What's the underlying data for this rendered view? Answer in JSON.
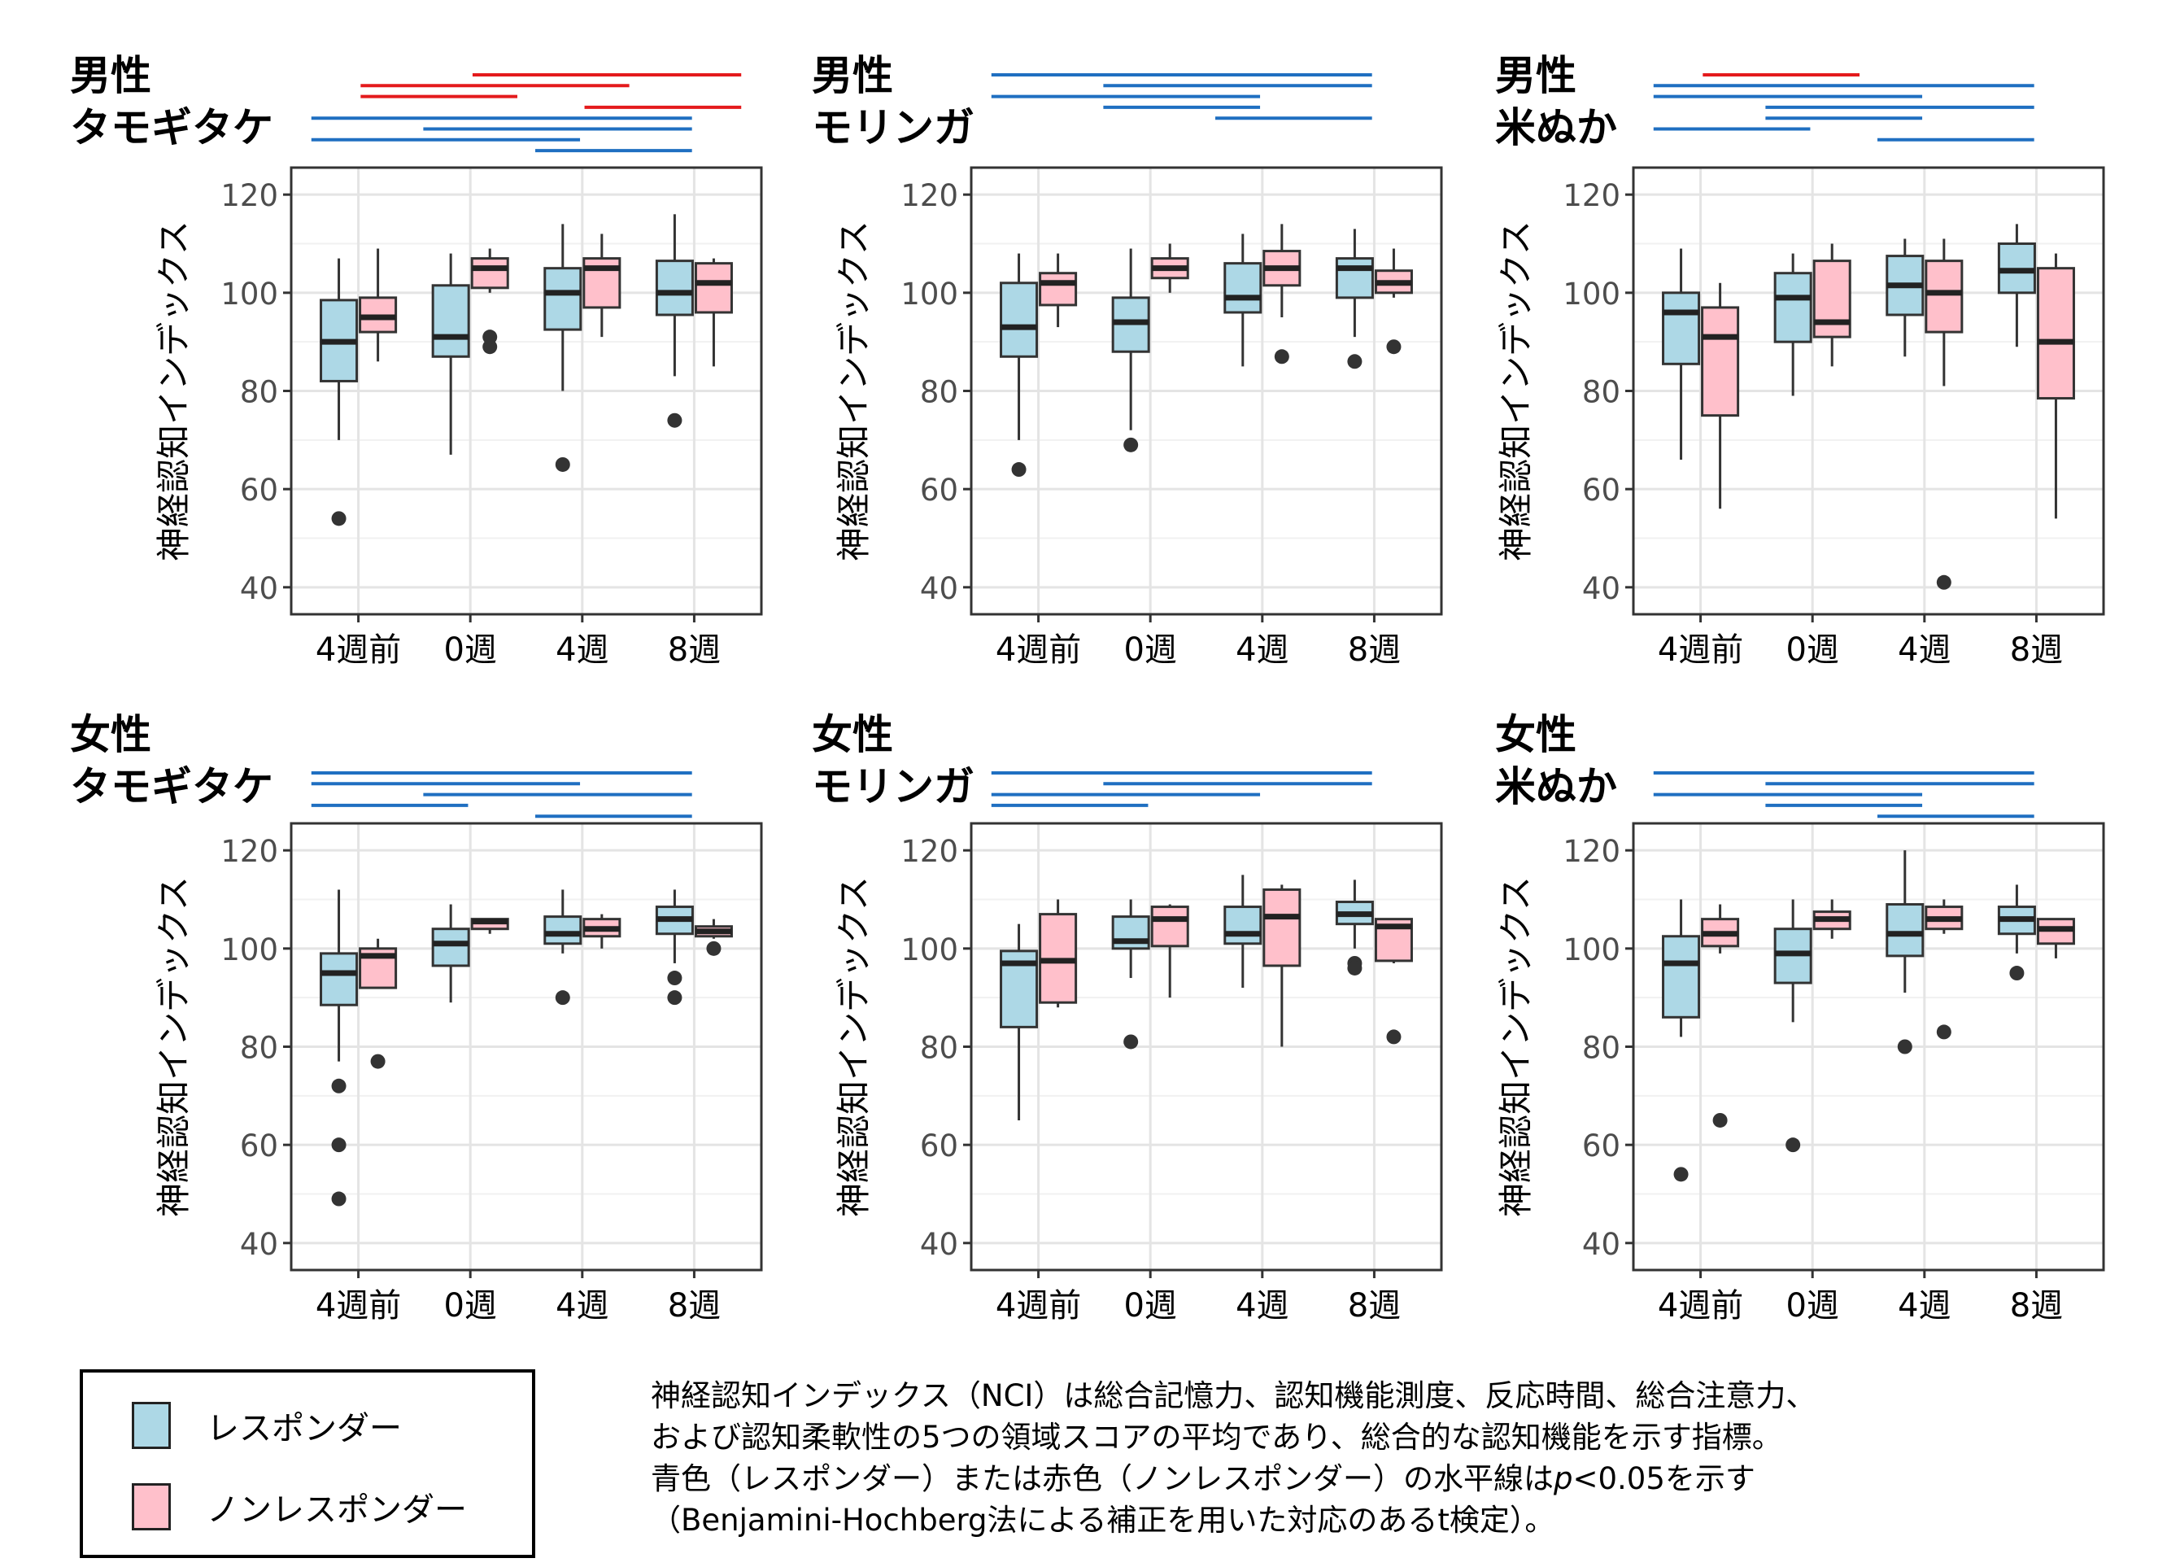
{
  "chart_data": [
    {
      "type": "box",
      "title": "男性\nタモギタケ",
      "ylabel": "神経認知インデックス",
      "categories": [
        "4週前",
        "0週",
        "4週",
        "8週"
      ],
      "ylim": [
        40,
        120
      ],
      "yticks": [
        40,
        60,
        80,
        100,
        120
      ],
      "series": [
        {
          "name": "レスポンダー",
          "color": "#add8e6",
          "boxes": [
            {
              "q1": 82,
              "median": 90,
              "q3": 98.5,
              "whisker_low": 70,
              "whisker_high": 107,
              "outliers": [
                54
              ]
            },
            {
              "q1": 87,
              "median": 91,
              "q3": 101.5,
              "whisker_low": 67,
              "whisker_high": 108,
              "outliers": []
            },
            {
              "q1": 92.5,
              "median": 100,
              "q3": 105,
              "whisker_low": 80,
              "whisker_high": 114,
              "outliers": [
                65
              ]
            },
            {
              "q1": 95.5,
              "median": 100,
              "q3": 106.5,
              "whisker_low": 83,
              "whisker_high": 116,
              "outliers": [
                74
              ]
            }
          ]
        },
        {
          "name": "ノンレスポンダー",
          "color": "#ffc0cb",
          "boxes": [
            {
              "q1": 92,
              "median": 95,
              "q3": 99,
              "whisker_low": 86,
              "whisker_high": 109,
              "outliers": []
            },
            {
              "q1": 101,
              "median": 105,
              "q3": 107,
              "whisker_low": 100,
              "whisker_high": 109,
              "outliers": [
                89,
                91
              ]
            },
            {
              "q1": 97,
              "median": 105,
              "q3": 107,
              "whisker_low": 91,
              "whisker_high": 112,
              "outliers": []
            },
            {
              "q1": 96,
              "median": 102,
              "q3": 106,
              "whisker_low": 85,
              "whisker_high": 107,
              "outliers": []
            }
          ]
        }
      ],
      "significance": [
        {
          "series": "ノンレスポンダー",
          "color": "red",
          "from": "0週",
          "to": "8週"
        },
        {
          "series": "ノンレスポンダー",
          "color": "red",
          "from": "4週前",
          "to": "4週"
        },
        {
          "series": "ノンレスポンダー",
          "color": "red",
          "from": "4週前",
          "to": "0週"
        },
        {
          "series": "ノンレスポンダー",
          "color": "red",
          "from": "4週",
          "to": "8週"
        },
        {
          "series": "レスポンダー",
          "color": "blue",
          "from": "4週前",
          "to": "8週"
        },
        {
          "series": "レスポンダー",
          "color": "blue",
          "from": "0週",
          "to": "8週"
        },
        {
          "series": "レスポンダー",
          "color": "blue",
          "from": "4週前",
          "to": "4週"
        },
        {
          "series": "レスポンダー",
          "color": "blue",
          "from": "4週",
          "to": "8週"
        }
      ]
    },
    {
      "type": "box",
      "title": "男性\nモリンガ",
      "ylabel": "神経認知インデックス",
      "categories": [
        "4週前",
        "0週",
        "4週",
        "8週"
      ],
      "ylim": [
        40,
        120
      ],
      "yticks": [
        40,
        60,
        80,
        100,
        120
      ],
      "series": [
        {
          "name": "レスポンダー",
          "color": "#add8e6",
          "boxes": [
            {
              "q1": 87,
              "median": 93,
              "q3": 102,
              "whisker_low": 70,
              "whisker_high": 108,
              "outliers": [
                64
              ]
            },
            {
              "q1": 88,
              "median": 94,
              "q3": 99,
              "whisker_low": 72,
              "whisker_high": 109,
              "outliers": [
                69
              ]
            },
            {
              "q1": 96,
              "median": 99,
              "q3": 106,
              "whisker_low": 85,
              "whisker_high": 112,
              "outliers": []
            },
            {
              "q1": 99,
              "median": 105,
              "q3": 107,
              "whisker_low": 91,
              "whisker_high": 113,
              "outliers": [
                86
              ]
            }
          ]
        },
        {
          "name": "ノンレスポンダー",
          "color": "#ffc0cb",
          "boxes": [
            {
              "q1": 97.5,
              "median": 102,
              "q3": 104,
              "whisker_low": 93,
              "whisker_high": 108,
              "outliers": []
            },
            {
              "q1": 103,
              "median": 105,
              "q3": 107,
              "whisker_low": 100,
              "whisker_high": 110,
              "outliers": []
            },
            {
              "q1": 101.5,
              "median": 105,
              "q3": 108.5,
              "whisker_low": 95,
              "whisker_high": 114,
              "outliers": [
                87
              ]
            },
            {
              "q1": 100,
              "median": 102,
              "q3": 104.5,
              "whisker_low": 99,
              "whisker_high": 109,
              "outliers": [
                89
              ]
            }
          ]
        }
      ],
      "significance": [
        {
          "series": "レスポンダー",
          "color": "blue",
          "from": "4週前",
          "to": "8週"
        },
        {
          "series": "レスポンダー",
          "color": "blue",
          "from": "0週",
          "to": "8週"
        },
        {
          "series": "レスポンダー",
          "color": "blue",
          "from": "4週前",
          "to": "4週"
        },
        {
          "series": "レスポンダー",
          "color": "blue",
          "from": "0週",
          "to": "4週"
        },
        {
          "series": "レスポンダー",
          "color": "blue",
          "from": "4週",
          "to": "8週"
        }
      ]
    },
    {
      "type": "box",
      "title": "男性\n米ぬか",
      "ylabel": "神経認知インデックス",
      "categories": [
        "4週前",
        "0週",
        "4週",
        "8週"
      ],
      "ylim": [
        40,
        120
      ],
      "yticks": [
        40,
        60,
        80,
        100,
        120
      ],
      "series": [
        {
          "name": "レスポンダー",
          "color": "#add8e6",
          "boxes": [
            {
              "q1": 85.5,
              "median": 96,
              "q3": 100,
              "whisker_low": 66,
              "whisker_high": 109,
              "outliers": []
            },
            {
              "q1": 90,
              "median": 99,
              "q3": 104,
              "whisker_low": 79,
              "whisker_high": 108,
              "outliers": []
            },
            {
              "q1": 95.5,
              "median": 101.5,
              "q3": 107.5,
              "whisker_low": 87,
              "whisker_high": 111,
              "outliers": []
            },
            {
              "q1": 100,
              "median": 104.5,
              "q3": 110,
              "whisker_low": 89,
              "whisker_high": 114,
              "outliers": []
            }
          ]
        },
        {
          "name": "ノンレスポンダー",
          "color": "#ffc0cb",
          "boxes": [
            {
              "q1": 75,
              "median": 91,
              "q3": 97,
              "whisker_low": 56,
              "whisker_high": 102,
              "outliers": []
            },
            {
              "q1": 91,
              "median": 94,
              "q3": 106.5,
              "whisker_low": 85,
              "whisker_high": 110,
              "outliers": []
            },
            {
              "q1": 92,
              "median": 100,
              "q3": 106.5,
              "whisker_low": 81,
              "whisker_high": 111,
              "outliers": [
                41
              ]
            },
            {
              "q1": 78.5,
              "median": 90,
              "q3": 105,
              "whisker_low": 54,
              "whisker_high": 108,
              "outliers": []
            }
          ]
        }
      ],
      "significance": [
        {
          "series": "ノンレスポンダー",
          "color": "red",
          "from": "4週前",
          "to": "0週"
        },
        {
          "series": "レスポンダー",
          "color": "blue",
          "from": "4週前",
          "to": "8週"
        },
        {
          "series": "レスポンダー",
          "color": "blue",
          "from": "4週前",
          "to": "4週"
        },
        {
          "series": "レスポンダー",
          "color": "blue",
          "from": "0週",
          "to": "8週"
        },
        {
          "series": "レスポンダー",
          "color": "blue",
          "from": "0週",
          "to": "4週"
        },
        {
          "series": "レスポンダー",
          "color": "blue",
          "from": "4週前",
          "to": "0週"
        },
        {
          "series": "レスポンダー",
          "color": "blue",
          "from": "4週",
          "to": "8週"
        }
      ]
    },
    {
      "type": "box",
      "title": "女性\nタモギタケ",
      "ylabel": "神経認知インデックス",
      "categories": [
        "4週前",
        "0週",
        "4週",
        "8週"
      ],
      "ylim": [
        40,
        120
      ],
      "yticks": [
        40,
        60,
        80,
        100,
        120
      ],
      "series": [
        {
          "name": "レスポンダー",
          "color": "#add8e6",
          "boxes": [
            {
              "q1": 88.5,
              "median": 95,
              "q3": 99,
              "whisker_low": 77,
              "whisker_high": 112,
              "outliers": [
                72,
                60,
                49
              ]
            },
            {
              "q1": 96.5,
              "median": 101,
              "q3": 104,
              "whisker_low": 89,
              "whisker_high": 109,
              "outliers": []
            },
            {
              "q1": 101,
              "median": 103,
              "q3": 106.5,
              "whisker_low": 99,
              "whisker_high": 112,
              "outliers": [
                90
              ]
            },
            {
              "q1": 103,
              "median": 106,
              "q3": 108.5,
              "whisker_low": 97,
              "whisker_high": 112,
              "outliers": [
                94,
                90
              ]
            }
          ]
        },
        {
          "name": "ノンレスポンダー",
          "color": "#ffc0cb",
          "boxes": [
            {
              "q1": 92,
              "median": 98.5,
              "q3": 100,
              "whisker_low": 92,
              "whisker_high": 102,
              "outliers": [
                77
              ]
            },
            {
              "q1": 104,
              "median": 105.5,
              "q3": 106,
              "whisker_low": 103,
              "whisker_high": 106,
              "outliers": []
            },
            {
              "q1": 102.5,
              "median": 104,
              "q3": 106,
              "whisker_low": 100,
              "whisker_high": 107,
              "outliers": []
            },
            {
              "q1": 102.5,
              "median": 103.5,
              "q3": 104.5,
              "whisker_low": 102,
              "whisker_high": 106,
              "outliers": [
                100
              ]
            }
          ]
        }
      ],
      "significance": [
        {
          "series": "レスポンダー",
          "color": "blue",
          "from": "4週前",
          "to": "8週"
        },
        {
          "series": "レスポンダー",
          "color": "blue",
          "from": "4週前",
          "to": "4週"
        },
        {
          "series": "レスポンダー",
          "color": "blue",
          "from": "0週",
          "to": "8週"
        },
        {
          "series": "レスポンダー",
          "color": "blue",
          "from": "4週前",
          "to": "0週"
        },
        {
          "series": "レスポンダー",
          "color": "blue",
          "from": "4週",
          "to": "8週"
        }
      ]
    },
    {
      "type": "box",
      "title": "女性\nモリンガ",
      "ylabel": "神経認知インデックス",
      "categories": [
        "4週前",
        "0週",
        "4週",
        "8週"
      ],
      "ylim": [
        40,
        120
      ],
      "yticks": [
        40,
        60,
        80,
        100,
        120
      ],
      "series": [
        {
          "name": "レスポンダー",
          "color": "#add8e6",
          "boxes": [
            {
              "q1": 84,
              "median": 97,
              "q3": 99.5,
              "whisker_low": 65,
              "whisker_high": 105,
              "outliers": []
            },
            {
              "q1": 100,
              "median": 101.5,
              "q3": 106.5,
              "whisker_low": 94,
              "whisker_high": 110,
              "outliers": [
                81
              ]
            },
            {
              "q1": 101,
              "median": 103,
              "q3": 108.5,
              "whisker_low": 92,
              "whisker_high": 115,
              "outliers": []
            },
            {
              "q1": 105,
              "median": 107,
              "q3": 109.5,
              "whisker_low": 100,
              "whisker_high": 114,
              "outliers": [
                97,
                96
              ]
            }
          ]
        },
        {
          "name": "ノンレスポンダー",
          "color": "#ffc0cb",
          "boxes": [
            {
              "q1": 89,
              "median": 97.5,
              "q3": 107,
              "whisker_low": 88,
              "whisker_high": 110,
              "outliers": []
            },
            {
              "q1": 100.5,
              "median": 106,
              "q3": 108.5,
              "whisker_low": 90,
              "whisker_high": 109,
              "outliers": []
            },
            {
              "q1": 96.5,
              "median": 106.5,
              "q3": 112,
              "whisker_low": 80,
              "whisker_high": 113,
              "outliers": []
            },
            {
              "q1": 97.5,
              "median": 104.5,
              "q3": 106,
              "whisker_low": 97,
              "whisker_high": 106,
              "outliers": [
                82
              ]
            }
          ]
        }
      ],
      "significance": [
        {
          "series": "レスポンダー",
          "color": "blue",
          "from": "4週前",
          "to": "8週"
        },
        {
          "series": "レスポンダー",
          "color": "blue",
          "from": "0週",
          "to": "8週"
        },
        {
          "series": "レスポンダー",
          "color": "blue",
          "from": "4週前",
          "to": "4週"
        },
        {
          "series": "レスポンダー",
          "color": "blue",
          "from": "4週前",
          "to": "0週"
        }
      ]
    },
    {
      "type": "box",
      "title": "女性\n米ぬか",
      "ylabel": "神経認知インデックス",
      "categories": [
        "4週前",
        "0週",
        "4週",
        "8週"
      ],
      "ylim": [
        40,
        120
      ],
      "yticks": [
        40,
        60,
        80,
        100,
        120
      ],
      "series": [
        {
          "name": "レスポンダー",
          "color": "#add8e6",
          "boxes": [
            {
              "q1": 86,
              "median": 97,
              "q3": 102.5,
              "whisker_low": 82,
              "whisker_high": 110,
              "outliers": [
                54
              ]
            },
            {
              "q1": 93,
              "median": 99,
              "q3": 104,
              "whisker_low": 85,
              "whisker_high": 110,
              "outliers": [
                60
              ]
            },
            {
              "q1": 98.5,
              "median": 103,
              "q3": 109,
              "whisker_low": 91,
              "whisker_high": 120,
              "outliers": [
                80
              ]
            },
            {
              "q1": 103,
              "median": 106,
              "q3": 108.5,
              "whisker_low": 99,
              "whisker_high": 113,
              "outliers": [
                95
              ]
            }
          ]
        },
        {
          "name": "ノンレスポンダー",
          "color": "#ffc0cb",
          "boxes": [
            {
              "q1": 100.5,
              "median": 103,
              "q3": 106,
              "whisker_low": 99,
              "whisker_high": 109,
              "outliers": [
                65
              ]
            },
            {
              "q1": 104,
              "median": 106,
              "q3": 107.5,
              "whisker_low": 102,
              "whisker_high": 110,
              "outliers": []
            },
            {
              "q1": 104,
              "median": 106,
              "q3": 108.5,
              "whisker_low": 103,
              "whisker_high": 110,
              "outliers": [
                83
              ]
            },
            {
              "q1": 101,
              "median": 104,
              "q3": 106,
              "whisker_low": 98,
              "whisker_high": 106,
              "outliers": []
            }
          ]
        }
      ],
      "significance": [
        {
          "series": "レスポンダー",
          "color": "blue",
          "from": "4週前",
          "to": "8週"
        },
        {
          "series": "レスポンダー",
          "color": "blue",
          "from": "0週",
          "to": "8週"
        },
        {
          "series": "レスポンダー",
          "color": "blue",
          "from": "4週前",
          "to": "4週"
        },
        {
          "series": "レスポンダー",
          "color": "blue",
          "from": "0週",
          "to": "4週"
        },
        {
          "series": "レスポンダー",
          "color": "blue",
          "from": "4週",
          "to": "8週"
        }
      ]
    }
  ],
  "legend": {
    "items": [
      {
        "label": "レスポンダー",
        "color": "#add8e6"
      },
      {
        "label": "ノンレスポンダー",
        "color": "#ffc0cb"
      }
    ]
  },
  "note": {
    "line1": "神経認知インデックス（NCI）は総合記憶力、認知機能測度、反応時間、総合注意力、",
    "line2": "および認知柔軟性の5つの領域スコアの平均であり、総合的な認知機能を示す指標。",
    "line3_pre": "青色（レスポンダー）または赤色（ノンレスポンダー）の水平線は",
    "line3_p": "p",
    "line3_post": "<0.05を示す",
    "line4": "（Benjamini-Hochberg法による補正を用いた対応のあるt検定）。"
  },
  "colors": {
    "responder": "#add8e6",
    "nonresponder": "#ffc0cb",
    "sig_red": "#e41a1c",
    "sig_blue": "#1f6fc1"
  }
}
